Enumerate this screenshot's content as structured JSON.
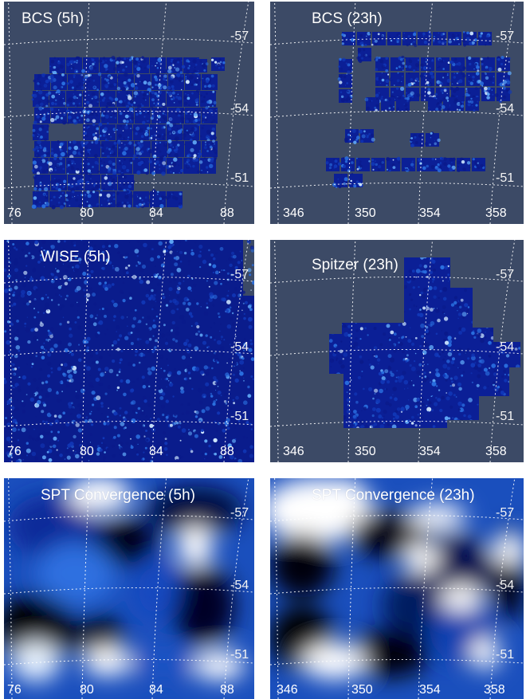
{
  "figure": {
    "panels": [
      {
        "title": "BCS (5h)",
        "kind": "tiles",
        "x_ticks": [
          "76",
          "80",
          "84",
          "88"
        ],
        "y_ticks": [
          "-57",
          "-54",
          "-51"
        ]
      },
      {
        "title": "BCS (23h)",
        "kind": "tiles",
        "x_ticks": [
          "346",
          "350",
          "354",
          "358"
        ],
        "y_ticks": [
          "-57",
          "-54",
          "-51"
        ]
      },
      {
        "title": "WISE (5h)",
        "kind": "noise",
        "x_ticks": [
          "76",
          "80",
          "84",
          "88"
        ],
        "y_ticks": [
          "-57",
          "-54",
          "-51"
        ]
      },
      {
        "title": "Spitzer (23h)",
        "kind": "mosaic",
        "x_ticks": [
          "346",
          "350",
          "354",
          "358"
        ],
        "y_ticks": [
          "-57",
          "-54",
          "-51"
        ]
      },
      {
        "title": "SPT Convergence (5h)",
        "kind": "smooth",
        "x_ticks": [
          "76",
          "80",
          "84",
          "88"
        ],
        "y_ticks": [
          "-57",
          "-54",
          "-51"
        ]
      },
      {
        "title": "SPT Convergence (23h)",
        "kind": "smooth",
        "x_ticks": [
          "346",
          "350",
          "354",
          "358"
        ],
        "y_ticks": [
          "-57",
          "-54",
          "-51"
        ]
      }
    ],
    "colors": {
      "background": "#3c4a66",
      "dark_blue": "#00003a",
      "mid_blue": "#1a5fd0",
      "bright": "#ffffff",
      "grid": "#ffffff"
    }
  }
}
